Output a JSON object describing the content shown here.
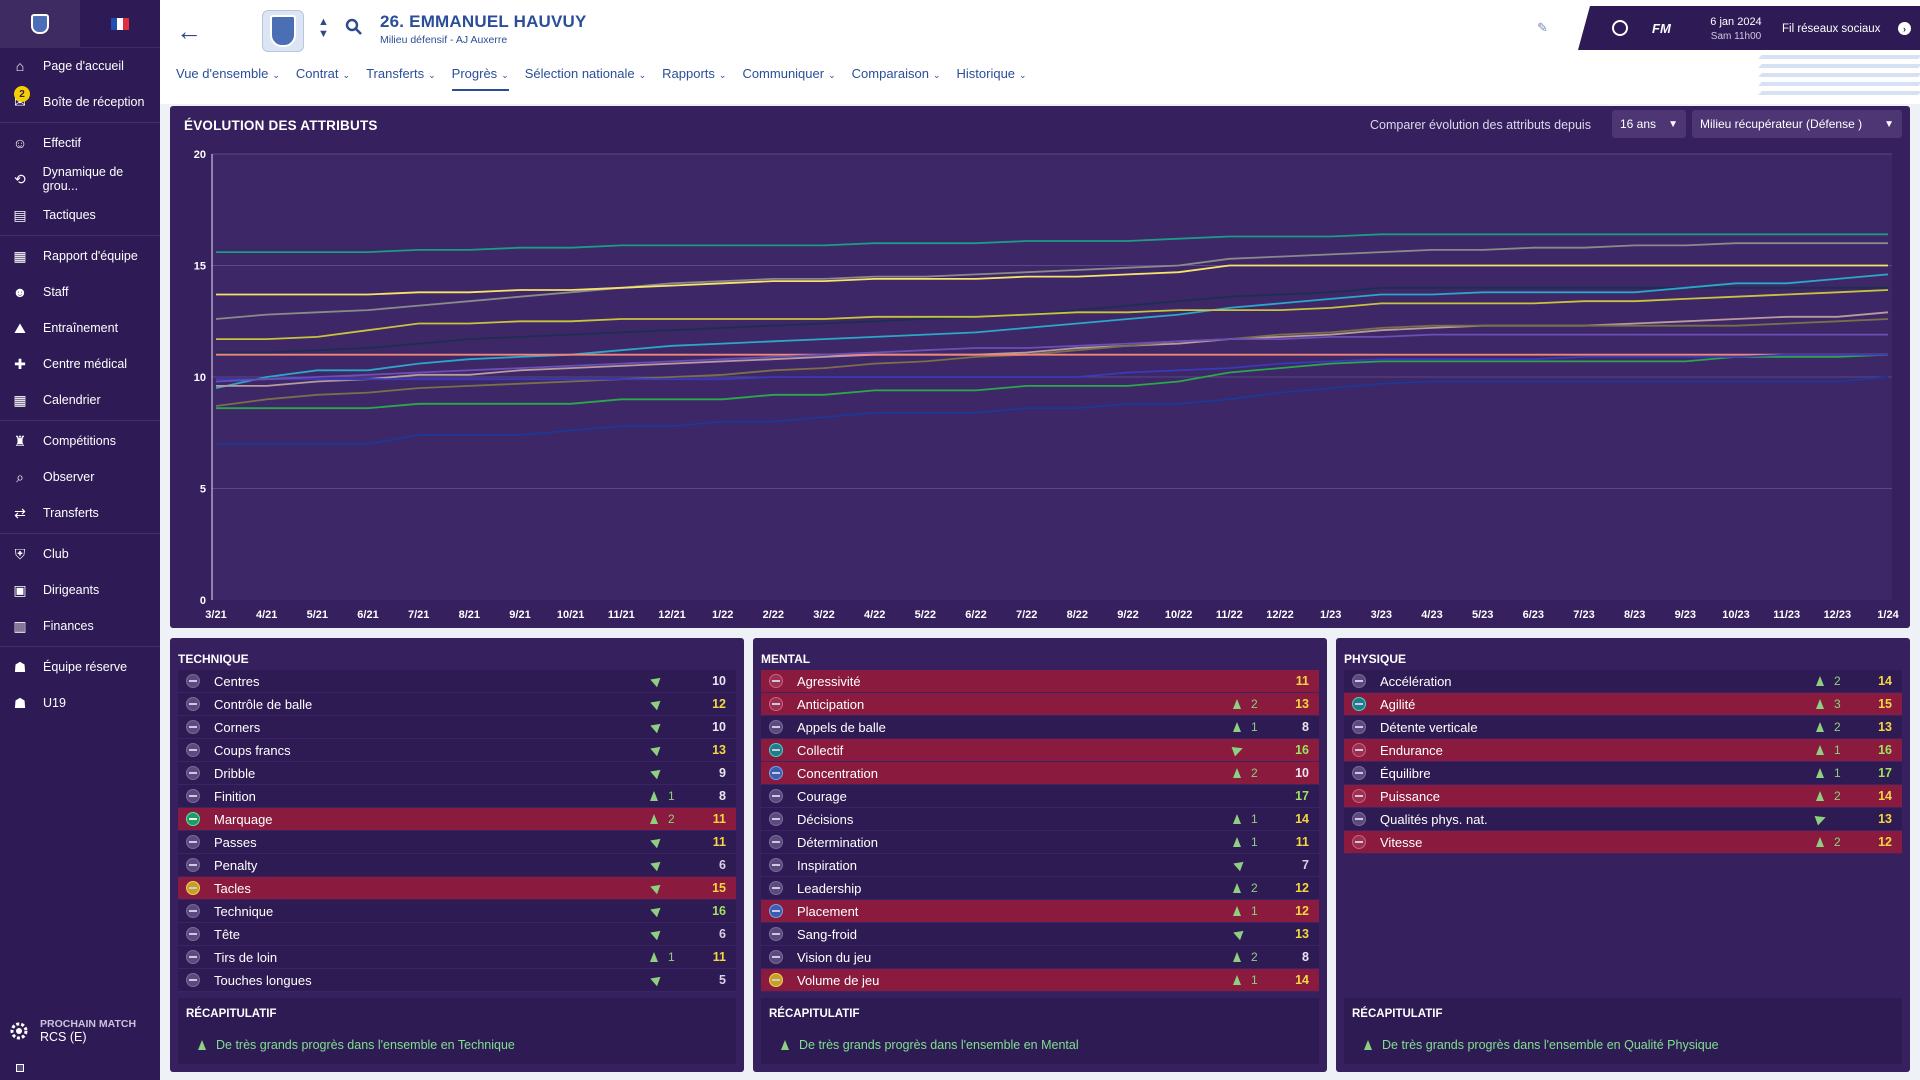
{
  "sidebar": {
    "items": [
      {
        "label": "Page d'accueil",
        "icon": "home-icon"
      },
      {
        "label": "Boîte de réception",
        "icon": "inbox-icon",
        "badge": "2"
      },
      {
        "label": "Effectif",
        "icon": "squad-icon"
      },
      {
        "label": "Dynamique de grou...",
        "icon": "dynamics-icon"
      },
      {
        "label": "Tactiques",
        "icon": "tactics-icon"
      },
      {
        "label": "Rapport d'équipe",
        "icon": "report-icon"
      },
      {
        "label": "Staff",
        "icon": "staff-icon"
      },
      {
        "label": "Entraînement",
        "icon": "training-icon"
      },
      {
        "label": "Centre médical",
        "icon": "medical-icon"
      },
      {
        "label": "Calendrier",
        "icon": "calendar-icon"
      },
      {
        "label": "Compétitions",
        "icon": "trophy-icon"
      },
      {
        "label": "Observer",
        "icon": "scout-icon"
      },
      {
        "label": "Transferts",
        "icon": "transfers-icon"
      },
      {
        "label": "Club",
        "icon": "club-icon"
      },
      {
        "label": "Dirigeants",
        "icon": "board-icon"
      },
      {
        "label": "Finances",
        "icon": "finances-icon"
      },
      {
        "label": "Équipe réserve",
        "icon": "reserve-icon"
      },
      {
        "label": "U19",
        "icon": "u19-icon"
      }
    ],
    "next_match_label": "PROCHAIN MATCH",
    "next_match_team": "RCS (E)"
  },
  "header": {
    "player_name": "26. EMMANUEL HAUVUY",
    "player_subtitle": "Milieu défensif - AJ Auxerre",
    "date": "6 jan 2024",
    "time": "Sam 11h00",
    "fm_label": "FM",
    "social_label": "Fil réseaux sociaux",
    "tabs": [
      {
        "label": "Vue d'ensemble"
      },
      {
        "label": "Contrat"
      },
      {
        "label": "Transferts"
      },
      {
        "label": "Progrès"
      },
      {
        "label": "Sélection nationale"
      },
      {
        "label": "Rapports"
      },
      {
        "label": "Communiquer"
      },
      {
        "label": "Comparaison"
      },
      {
        "label": "Historique"
      }
    ],
    "active_tab": "Progrès"
  },
  "chart_panel": {
    "title": "ÉVOLUTION DES ATTRIBUTS",
    "compare_label": "Comparer évolution des attributs depuis",
    "years_value": "16 ans",
    "role_value": "Milieu récupérateur (Défense )"
  },
  "chart_data": {
    "type": "line",
    "title": "ÉVOLUTION DES ATTRIBUTS",
    "x": [
      "3/21",
      "4/21",
      "5/21",
      "6/21",
      "7/21",
      "8/21",
      "9/21",
      "10/21",
      "11/21",
      "12/21",
      "1/22",
      "2/22",
      "3/22",
      "4/22",
      "5/22",
      "6/22",
      "7/22",
      "8/22",
      "9/22",
      "10/22",
      "11/22",
      "12/22",
      "1/23",
      "3/23",
      "4/23",
      "5/23",
      "6/23",
      "7/23",
      "8/23",
      "9/23",
      "10/23",
      "11/23",
      "12/23",
      "1/24"
    ],
    "ylim": [
      0,
      20
    ],
    "yticks": [
      0,
      5,
      10,
      15,
      20
    ],
    "grid": true,
    "series": [
      {
        "color": "#1a9c86",
        "values": [
          15.6,
          15.6,
          15.6,
          15.6,
          15.7,
          15.7,
          15.8,
          15.8,
          15.9,
          15.9,
          15.9,
          15.9,
          15.9,
          16,
          16,
          16,
          16.1,
          16.1,
          16.1,
          16.2,
          16.3,
          16.3,
          16.3,
          16.4,
          16.4,
          16.4,
          16.4,
          16.4,
          16.4,
          16.4,
          16.4,
          16.4,
          16.4,
          16.4
        ]
      },
      {
        "color": "#8a8a8a",
        "values": [
          12.6,
          12.8,
          12.9,
          13,
          13.2,
          13.4,
          13.6,
          13.8,
          14,
          14.2,
          14.3,
          14.4,
          14.4,
          14.5,
          14.5,
          14.6,
          14.7,
          14.8,
          14.9,
          15,
          15.3,
          15.4,
          15.5,
          15.6,
          15.7,
          15.7,
          15.8,
          15.8,
          15.9,
          15.9,
          16,
          16,
          16,
          16
        ]
      },
      {
        "color": "#f6e36a",
        "values": [
          13.7,
          13.7,
          13.7,
          13.7,
          13.8,
          13.8,
          13.9,
          13.9,
          14,
          14.1,
          14.2,
          14.3,
          14.3,
          14.4,
          14.4,
          14.4,
          14.5,
          14.5,
          14.6,
          14.7,
          15,
          15,
          15,
          15,
          15,
          15,
          15,
          15,
          15,
          15,
          15,
          15,
          15,
          15
        ]
      },
      {
        "color": "#1c2f52",
        "values": [
          11.1,
          11.1,
          11.2,
          11.3,
          11.5,
          11.7,
          11.8,
          11.9,
          12,
          12.1,
          12.2,
          12.3,
          12.4,
          12.5,
          12.6,
          12.7,
          12.8,
          13,
          13.2,
          13.4,
          13.6,
          13.7,
          13.8,
          14,
          14,
          14,
          14,
          14,
          14,
          14,
          14,
          14,
          14,
          14
        ]
      },
      {
        "color": "#2ba7c7",
        "values": [
          9.5,
          10,
          10.3,
          10.3,
          10.6,
          10.8,
          10.9,
          11,
          11.2,
          11.4,
          11.5,
          11.6,
          11.7,
          11.8,
          11.9,
          12,
          12.2,
          12.4,
          12.6,
          12.8,
          13.1,
          13.3,
          13.5,
          13.7,
          13.7,
          13.8,
          13.8,
          13.8,
          13.8,
          14,
          14.2,
          14.2,
          14.4,
          14.6
        ]
      },
      {
        "color": "#c8c33e",
        "values": [
          11.7,
          11.7,
          11.8,
          12.1,
          12.4,
          12.4,
          12.5,
          12.5,
          12.6,
          12.6,
          12.6,
          12.6,
          12.6,
          12.7,
          12.7,
          12.7,
          12.8,
          12.9,
          12.9,
          13,
          13,
          13,
          13.1,
          13.3,
          13.3,
          13.3,
          13.3,
          13.4,
          13.4,
          13.5,
          13.6,
          13.7,
          13.8,
          13.9
        ]
      },
      {
        "color": "#b99a9e",
        "values": [
          9.6,
          9.6,
          9.8,
          9.9,
          10.1,
          10.1,
          10.3,
          10.4,
          10.5,
          10.6,
          10.7,
          10.8,
          10.9,
          11,
          11,
          11,
          11.1,
          11.3,
          11.4,
          11.5,
          11.7,
          11.8,
          11.9,
          12.1,
          12.2,
          12.3,
          12.3,
          12.3,
          12.4,
          12.5,
          12.6,
          12.7,
          12.7,
          12.9
        ]
      },
      {
        "color": "#7a6f4a",
        "values": [
          8.7,
          9,
          9.2,
          9.3,
          9.5,
          9.6,
          9.7,
          9.8,
          9.9,
          10,
          10.1,
          10.3,
          10.4,
          10.6,
          10.7,
          10.9,
          11,
          11.2,
          11.4,
          11.6,
          11.7,
          11.9,
          12,
          12.2,
          12.3,
          12.3,
          12.3,
          12.3,
          12.3,
          12.3,
          12.3,
          12.4,
          12.5,
          12.6
        ]
      },
      {
        "color": "#f0877a",
        "values": [
          11,
          11,
          11,
          11,
          11,
          11,
          11,
          11,
          11,
          11,
          11,
          11,
          11,
          11,
          11,
          11,
          11,
          11,
          11,
          11,
          11,
          11,
          11,
          11,
          11,
          11,
          11,
          11,
          11,
          11,
          11,
          11,
          11,
          11
        ]
      },
      {
        "color": "#2aa84a",
        "values": [
          8.6,
          8.6,
          8.6,
          8.6,
          8.8,
          8.8,
          8.8,
          8.8,
          9,
          9,
          9,
          9.2,
          9.2,
          9.4,
          9.4,
          9.4,
          9.6,
          9.6,
          9.6,
          9.8,
          10.2,
          10.4,
          10.6,
          10.7,
          10.7,
          10.7,
          10.7,
          10.7,
          10.7,
          10.7,
          10.9,
          10.9,
          10.9,
          11
        ]
      },
      {
        "color": "#3a3ab8",
        "values": [
          9.9,
          9.9,
          9.9,
          9.9,
          9.9,
          9.9,
          9.9,
          9.9,
          9.9,
          9.9,
          9.9,
          10,
          10,
          10,
          10,
          10,
          10,
          10,
          10.2,
          10.3,
          10.4,
          10.6,
          10.7,
          10.8,
          10.8,
          10.8,
          10.8,
          10.9,
          10.9,
          10.9,
          10.9,
          11,
          11,
          11
        ]
      },
      {
        "color": "#1d3896",
        "values": [
          7,
          7,
          7,
          7,
          7.4,
          7.4,
          7.4,
          7.6,
          7.8,
          7.8,
          8,
          8,
          8.2,
          8.4,
          8.4,
          8.4,
          8.6,
          8.6,
          8.8,
          8.8,
          9,
          9.3,
          9.5,
          9.7,
          9.8,
          9.8,
          9.8,
          9.8,
          9.8,
          9.8,
          9.8,
          9.8,
          9.8,
          10
        ]
      },
      {
        "color": "#6b4fb5",
        "values": [
          9.8,
          9.9,
          10,
          10.1,
          10.2,
          10.3,
          10.4,
          10.5,
          10.6,
          10.7,
          10.8,
          10.9,
          11,
          11.1,
          11.2,
          11.3,
          11.3,
          11.4,
          11.5,
          11.6,
          11.7,
          11.7,
          11.8,
          11.8,
          11.9,
          11.9,
          11.9,
          11.9,
          11.9,
          11.9,
          11.9,
          11.9,
          11.9,
          11.9
        ]
      }
    ]
  },
  "technique": {
    "title": "TECHNIQUE",
    "rows": [
      {
        "name": "Centres",
        "change": "",
        "trend": "flat",
        "value": "10",
        "style": ""
      },
      {
        "name": "Contrôle de balle",
        "change": "",
        "trend": "flat",
        "value": "12",
        "style": ""
      },
      {
        "name": "Corners",
        "change": "",
        "trend": "flat",
        "value": "10",
        "style": ""
      },
      {
        "name": "Coups francs",
        "change": "",
        "trend": "flat",
        "value": "13",
        "style": ""
      },
      {
        "name": "Dribble",
        "change": "",
        "trend": "flat",
        "value": "9",
        "style": ""
      },
      {
        "name": "Finition",
        "change": "1",
        "trend": "up",
        "value": "8",
        "style": ""
      },
      {
        "name": "Marquage",
        "change": "2",
        "trend": "up",
        "value": "11",
        "style": "hl gp"
      },
      {
        "name": "Passes",
        "change": "",
        "trend": "flat",
        "value": "11",
        "style": ""
      },
      {
        "name": "Penalty",
        "change": "",
        "trend": "flat",
        "value": "6",
        "style": ""
      },
      {
        "name": "Tacles",
        "change": "",
        "trend": "flat",
        "value": "15",
        "style": "hl yp"
      },
      {
        "name": "Technique",
        "change": "",
        "trend": "flat",
        "value": "16",
        "style": ""
      },
      {
        "name": "Tête",
        "change": "",
        "trend": "flat",
        "value": "6",
        "style": ""
      },
      {
        "name": "Tirs de loin",
        "change": "1",
        "trend": "up",
        "value": "11",
        "style": ""
      },
      {
        "name": "Touches longues",
        "change": "",
        "trend": "flat",
        "value": "5",
        "style": ""
      }
    ],
    "recap_title": "RÉCAPITULATIF",
    "recap_text": "De très grands progrès dans l'ensemble en Technique"
  },
  "mental": {
    "title": "MENTAL",
    "rows": [
      {
        "name": "Agressivité",
        "change": "",
        "trend": "",
        "value": "11",
        "style": "hl rp"
      },
      {
        "name": "Anticipation",
        "change": "2",
        "trend": "up",
        "value": "13",
        "style": "hl rp"
      },
      {
        "name": "Appels de balle",
        "change": "1",
        "trend": "up",
        "value": "8",
        "style": ""
      },
      {
        "name": "Collectif",
        "change": "",
        "trend": "fwd",
        "value": "16",
        "style": "hl tp"
      },
      {
        "name": "Concentration",
        "change": "2",
        "trend": "up",
        "value": "10",
        "style": "hl bp"
      },
      {
        "name": "Courage",
        "change": "",
        "trend": "",
        "value": "17",
        "style": ""
      },
      {
        "name": "Décisions",
        "change": "1",
        "trend": "up",
        "value": "14",
        "style": ""
      },
      {
        "name": "Détermination",
        "change": "1",
        "trend": "up",
        "value": "11",
        "style": ""
      },
      {
        "name": "Inspiration",
        "change": "",
        "trend": "flat",
        "value": "7",
        "style": ""
      },
      {
        "name": "Leadership",
        "change": "2",
        "trend": "up",
        "value": "12",
        "style": ""
      },
      {
        "name": "Placement",
        "change": "1",
        "trend": "up",
        "value": "12",
        "style": "hl bp"
      },
      {
        "name": "Sang-froid",
        "change": "",
        "trend": "flat",
        "value": "13",
        "style": ""
      },
      {
        "name": "Vision du jeu",
        "change": "2",
        "trend": "up",
        "value": "8",
        "style": ""
      },
      {
        "name": "Volume de jeu",
        "change": "1",
        "trend": "up",
        "value": "14",
        "style": "hl yp"
      }
    ],
    "recap_title": "RÉCAPITULATIF",
    "recap_text": "De très grands progrès dans l'ensemble en Mental"
  },
  "physique": {
    "title": "PHYSIQUE",
    "rows": [
      {
        "name": "Accélération",
        "change": "2",
        "trend": "up",
        "value": "14",
        "style": ""
      },
      {
        "name": "Agilité",
        "change": "3",
        "trend": "up",
        "value": "15",
        "style": "hl tp"
      },
      {
        "name": "Détente verticale",
        "change": "2",
        "trend": "up",
        "value": "13",
        "style": ""
      },
      {
        "name": "Endurance",
        "change": "1",
        "trend": "up",
        "value": "16",
        "style": "hl rp"
      },
      {
        "name": "Équilibre",
        "change": "1",
        "trend": "up",
        "value": "17",
        "style": ""
      },
      {
        "name": "Puissance",
        "change": "2",
        "trend": "up",
        "value": "14",
        "style": "hl rp"
      },
      {
        "name": "Qualités phys. nat.",
        "change": "",
        "trend": "fwd",
        "value": "13",
        "style": ""
      },
      {
        "name": "Vitesse",
        "change": "2",
        "trend": "up",
        "value": "12",
        "style": "hl rp"
      }
    ],
    "recap_title": "RÉCAPITULATIF",
    "recap_text": "De très grands progrès dans l'ensemble en Qualité Physique"
  }
}
